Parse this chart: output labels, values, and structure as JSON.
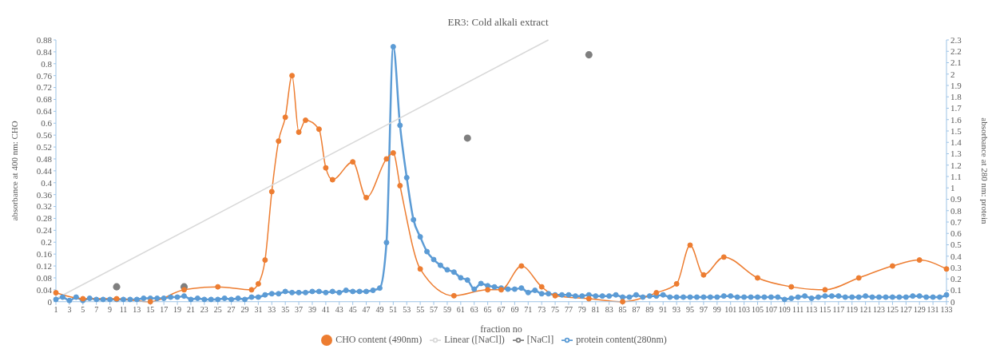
{
  "chart_data": {
    "type": "line",
    "title": "ER3: Cold alkali extract",
    "xlabel": "fraction no",
    "ylabel": "absorbance at 400 nm: CHO",
    "y2label": "absorbance at 280 nm: protein",
    "xlim": [
      1,
      133
    ],
    "xticks": [
      1,
      3,
      5,
      7,
      9,
      11,
      13,
      15,
      17,
      19,
      21,
      23,
      25,
      27,
      29,
      31,
      33,
      35,
      37,
      39,
      41,
      43,
      45,
      47,
      49,
      51,
      53,
      55,
      57,
      59,
      61,
      63,
      65,
      67,
      69,
      71,
      73,
      75,
      77,
      79,
      81,
      83,
      85,
      87,
      89,
      91,
      93,
      95,
      97,
      99,
      101,
      103,
      105,
      107,
      109,
      111,
      113,
      115,
      117,
      119,
      121,
      123,
      125,
      127,
      129,
      131,
      133
    ],
    "ylim": [
      0,
      0.88
    ],
    "yticks": [
      0,
      0.04,
      0.08,
      0.12,
      0.16,
      0.2,
      0.24,
      0.28,
      0.32,
      0.36,
      0.4,
      0.44,
      0.48,
      0.52,
      0.56,
      0.6,
      0.64,
      0.68,
      0.72,
      0.76,
      0.8,
      0.84,
      0.88
    ],
    "y2lim": [
      0,
      2.3
    ],
    "y2ticks": [
      0,
      0.1,
      0.2,
      0.3,
      0.4,
      0.5,
      0.6,
      0.7,
      0.8,
      0.9,
      1,
      1.1,
      1.2,
      1.3,
      1.4,
      1.5,
      1.6,
      1.7,
      1.8,
      1.9,
      2,
      2.1,
      2.2,
      2.3
    ],
    "marker": "circle",
    "line_style": "solid",
    "legend": "bottom",
    "series": [
      {
        "name": "[NaCl]",
        "type": "scatter",
        "color": "#7f7f7f",
        "x": [
          10,
          20,
          62,
          80
        ],
        "values": [
          0.05,
          0.05,
          0.55,
          0.83
        ]
      },
      {
        "name": "protein content(280nm)",
        "axis": "y2",
        "color": "#5b9bd5",
        "x": [
          1,
          2,
          3,
          4,
          5,
          6,
          7,
          8,
          9,
          10,
          11,
          12,
          13,
          14,
          15,
          16,
          17,
          18,
          19,
          20,
          21,
          22,
          23,
          24,
          25,
          26,
          27,
          28,
          29,
          30,
          31,
          32,
          33,
          34,
          35,
          36,
          37,
          38,
          39,
          40,
          41,
          42,
          43,
          44,
          45,
          46,
          47,
          48,
          49,
          50,
          51,
          52,
          53,
          54,
          55,
          56,
          57,
          58,
          59,
          60,
          61,
          62,
          63,
          64,
          65,
          66,
          67,
          68,
          69,
          70,
          71,
          72,
          73,
          74,
          75,
          76,
          77,
          78,
          79,
          80,
          81,
          82,
          83,
          84,
          85,
          86,
          87,
          88,
          89,
          90,
          91,
          92,
          93,
          94,
          95,
          96,
          97,
          98,
          99,
          100,
          101,
          102,
          103,
          104,
          105,
          106,
          107,
          108,
          109,
          110,
          111,
          112,
          113,
          114,
          115,
          116,
          117,
          118,
          119,
          120,
          121,
          122,
          123,
          124,
          125,
          126,
          127,
          128,
          129,
          130,
          131,
          132,
          133
        ],
        "values": [
          0.02,
          0.04,
          0.01,
          0.04,
          0.01,
          0.03,
          0.02,
          0.02,
          0.02,
          0.02,
          0.02,
          0.02,
          0.02,
          0.03,
          0.03,
          0.03,
          0.03,
          0.04,
          0.04,
          0.05,
          0.02,
          0.03,
          0.02,
          0.02,
          0.02,
          0.03,
          0.02,
          0.03,
          0.02,
          0.04,
          0.04,
          0.06,
          0.07,
          0.07,
          0.09,
          0.08,
          0.08,
          0.08,
          0.09,
          0.09,
          0.08,
          0.09,
          0.08,
          0.1,
          0.09,
          0.09,
          0.09,
          0.1,
          0.12,
          0.52,
          2.24,
          1.55,
          1.09,
          0.72,
          0.57,
          0.44,
          0.37,
          0.32,
          0.28,
          0.26,
          0.21,
          0.19,
          0.11,
          0.16,
          0.14,
          0.13,
          0.12,
          0.11,
          0.11,
          0.12,
          0.08,
          0.1,
          0.07,
          0.07,
          0.06,
          0.06,
          0.06,
          0.05,
          0.05,
          0.06,
          0.05,
          0.05,
          0.05,
          0.06,
          0.04,
          0.04,
          0.06,
          0.04,
          0.05,
          0.05,
          0.06,
          0.04,
          0.04,
          0.04,
          0.04,
          0.04,
          0.04,
          0.04,
          0.04,
          0.05,
          0.05,
          0.04,
          0.04,
          0.04,
          0.04,
          0.04,
          0.04,
          0.04,
          0.02,
          0.03,
          0.04,
          0.05,
          0.03,
          0.04,
          0.05,
          0.05,
          0.05,
          0.04,
          0.04,
          0.04,
          0.05,
          0.04,
          0.04,
          0.04,
          0.04,
          0.04,
          0.04,
          0.05,
          0.05,
          0.04,
          0.04,
          0.04,
          0.06
        ]
      },
      {
        "name": "CHO content (490nm)",
        "color": "#ed7d31",
        "x": [
          1,
          5,
          10,
          15,
          20,
          25,
          30,
          31,
          32,
          33,
          34,
          35,
          36,
          37,
          38,
          40,
          41,
          42,
          45,
          47,
          50,
          51,
          52,
          55,
          60,
          65,
          67,
          70,
          73,
          75,
          80,
          85,
          90,
          93,
          95,
          97,
          100,
          105,
          110,
          115,
          120,
          125,
          129,
          133
        ],
        "values": [
          0.03,
          0.01,
          0.01,
          0,
          0.04,
          0.05,
          0.04,
          0.06,
          0.14,
          0.37,
          0.54,
          0.62,
          0.76,
          0.57,
          0.61,
          0.58,
          0.45,
          0.41,
          0.47,
          0.35,
          0.48,
          0.5,
          0.39,
          0.11,
          0.02,
          0.04,
          0.04,
          0.12,
          0.05,
          0.02,
          0.01,
          0,
          0.03,
          0.06,
          0.19,
          0.09,
          0.15,
          0.08,
          0.05,
          0.04,
          0.08,
          0.12,
          0.14,
          0.11
        ]
      },
      {
        "name": "Linear ([NaCl])",
        "marker": "none",
        "color": "#d9d9d9",
        "x": [
          1,
          74
        ],
        "values": [
          0.01,
          0.88
        ]
      }
    ]
  }
}
